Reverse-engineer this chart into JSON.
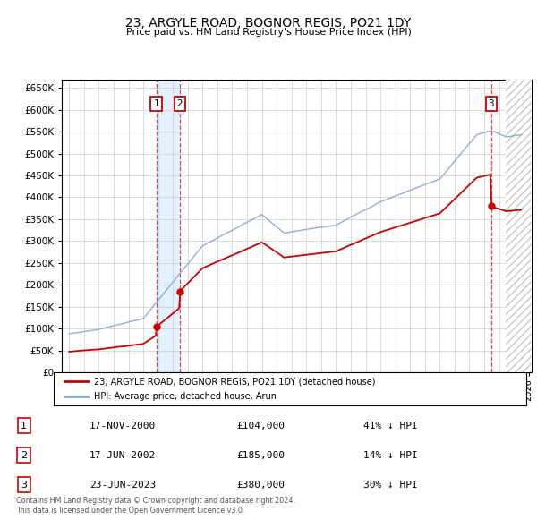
{
  "title": "23, ARGYLE ROAD, BOGNOR REGIS, PO21 1DY",
  "subtitle": "Price paid vs. HM Land Registry's House Price Index (HPI)",
  "ylim": [
    0,
    670000
  ],
  "yticks": [
    0,
    50000,
    100000,
    150000,
    200000,
    250000,
    300000,
    350000,
    400000,
    450000,
    500000,
    550000,
    600000,
    650000
  ],
  "xlim_start": 1994.5,
  "xlim_end": 2026.2,
  "transactions": [
    {
      "num": 1,
      "date": "17-NOV-2000",
      "date_x": 2000.88,
      "price": 104000,
      "pct": "41%",
      "dir": "↓"
    },
    {
      "num": 2,
      "date": "17-JUN-2002",
      "date_x": 2002.46,
      "price": 185000,
      "pct": "14%",
      "dir": "↓"
    },
    {
      "num": 3,
      "date": "23-JUN-2023",
      "date_x": 2023.48,
      "price": 380000,
      "pct": "30%",
      "dir": "↓"
    }
  ],
  "legend_property": "23, ARGYLE ROAD, BOGNOR REGIS, PO21 1DY (detached house)",
  "legend_hpi": "HPI: Average price, detached house, Arun",
  "footer": "Contains HM Land Registry data © Crown copyright and database right 2024.\nThis data is licensed under the Open Government Licence v3.0.",
  "property_color": "#cc0000",
  "hpi_color": "#88aadd",
  "marker_color": "#cc0000",
  "shade_color": "#bbddff",
  "hatch_start": 2024.42
}
